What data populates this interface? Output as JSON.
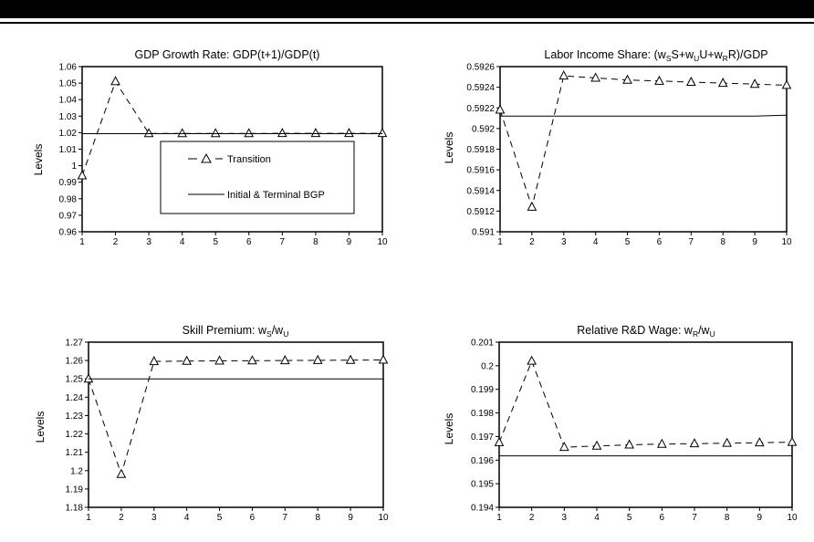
{
  "chart_data": [
    {
      "type": "line",
      "title": "GDP Growth Rate: GDP(t+1)/GDP(t)",
      "ylabel": "Levels",
      "xlabel": "",
      "x": [
        1,
        2,
        3,
        4,
        5,
        6,
        7,
        8,
        9,
        10
      ],
      "ylim": [
        0.96,
        1.06
      ],
      "yticks": [
        "0.96",
        "0.97",
        "0.98",
        "0.99",
        "1",
        "1.01",
        "1.02",
        "1.03",
        "1.04",
        "1.05",
        "1.06"
      ],
      "legend": {
        "placement": "center",
        "entries": [
          {
            "label": "– Δ – Transition",
            "text": "Transition",
            "style": "dashed-triangle"
          },
          {
            "label": "Initial & Terminal BGP",
            "text": "Initial & Terminal BGP",
            "style": "solid"
          }
        ]
      },
      "series": [
        {
          "name": "Transition",
          "style": "dashed-triangle",
          "values": [
            0.994,
            1.051,
            1.0195,
            1.0195,
            1.0195,
            1.0195,
            1.0196,
            1.0196,
            1.0196,
            1.0196
          ]
        },
        {
          "name": "Initial & Terminal BGP",
          "style": "solid",
          "values": [
            1.0194,
            1.0194,
            1.0194,
            1.0194,
            1.0194,
            1.0194,
            1.0194,
            1.0194,
            1.0194,
            1.0194
          ]
        }
      ]
    },
    {
      "type": "line",
      "title": "Labor Income Share: (wSS+wUU+wRR)/GDP",
      "ylabel": "Levels",
      "xlabel": "",
      "x": [
        1,
        2,
        3,
        4,
        5,
        6,
        7,
        8,
        9,
        10
      ],
      "ylim": [
        0.591,
        0.5926
      ],
      "yticks": [
        "0.591",
        "0.5912",
        "0.5914",
        "0.5916",
        "0.5918",
        "0.592",
        "0.5922",
        "0.5924",
        "0.5926"
      ],
      "series": [
        {
          "name": "Transition",
          "style": "dashed-triangle",
          "values": [
            0.59218,
            0.59124,
            0.59251,
            0.59249,
            0.59247,
            0.59246,
            0.59245,
            0.59244,
            0.59243,
            0.59242
          ]
        },
        {
          "name": "Initial & Terminal BGP",
          "style": "solid",
          "values": [
            0.59212,
            0.59212,
            0.59212,
            0.59212,
            0.59212,
            0.59212,
            0.59212,
            0.59212,
            0.59212,
            0.59213
          ]
        }
      ]
    },
    {
      "type": "line",
      "title": "Skill Premium: wS/wU",
      "ylabel": "Levels",
      "xlabel": "",
      "x": [
        1,
        2,
        3,
        4,
        5,
        6,
        7,
        8,
        9,
        10
      ],
      "ylim": [
        1.18,
        1.27
      ],
      "yticks": [
        "1.18",
        "1.19",
        "1.2",
        "1.21",
        "1.22",
        "1.23",
        "1.24",
        "1.25",
        "1.26",
        "1.27"
      ],
      "series": [
        {
          "name": "Transition",
          "style": "dashed-triangle",
          "values": [
            1.25,
            1.198,
            1.2595,
            1.2597,
            1.2598,
            1.2599,
            1.26,
            1.2601,
            1.2602,
            1.2603
          ]
        },
        {
          "name": "Initial & Terminal BGP",
          "style": "solid",
          "values": [
            1.25,
            1.25,
            1.25,
            1.25,
            1.25,
            1.25,
            1.25,
            1.25,
            1.25,
            1.25
          ]
        }
      ]
    },
    {
      "type": "line",
      "title": "Relative R&D Wage: wR/wU",
      "ylabel": "Levels",
      "xlabel": "",
      "x": [
        1,
        2,
        3,
        4,
        5,
        6,
        7,
        8,
        9,
        10
      ],
      "ylim": [
        0.194,
        0.201
      ],
      "yticks": [
        "0.194",
        "0.195",
        "0.196",
        "0.197",
        "0.198",
        "0.199",
        "0.2",
        "0.201"
      ],
      "series": [
        {
          "name": "Transition",
          "style": "dashed-triangle",
          "values": [
            0.19675,
            0.2002,
            0.19655,
            0.1966,
            0.19665,
            0.19668,
            0.1967,
            0.19672,
            0.19674,
            0.19676
          ]
        },
        {
          "name": "Initial & Terminal BGP",
          "style": "solid",
          "values": [
            0.19618,
            0.19618,
            0.19618,
            0.19618,
            0.19618,
            0.19618,
            0.19618,
            0.19618,
            0.19618,
            0.19618
          ]
        }
      ]
    }
  ],
  "colors": {
    "ink": "#000000",
    "background": "#ffffff"
  }
}
